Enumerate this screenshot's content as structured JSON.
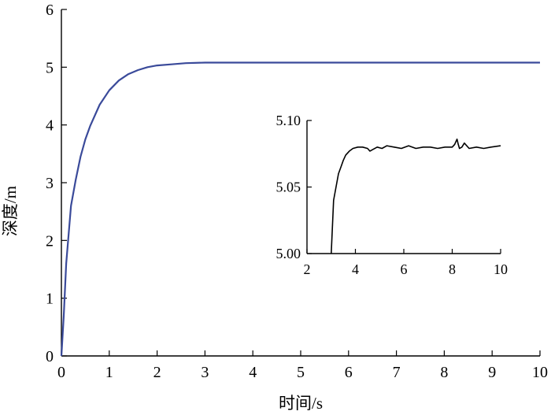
{
  "chart_data": [
    {
      "type": "line",
      "xlabel": "时间/s",
      "ylabel": "深度/m",
      "xlim": [
        0,
        10
      ],
      "ylim": [
        0,
        6
      ],
      "xticks": [
        "0",
        "1",
        "2",
        "3",
        "4",
        "5",
        "6",
        "7",
        "8",
        "9",
        "10"
      ],
      "yticks": [
        "0",
        "1",
        "2",
        "3",
        "4",
        "5",
        "6"
      ],
      "grid": false,
      "line_color": "#3a4a9a",
      "series": [
        {
          "x": [
            0,
            0.05,
            0.1,
            0.2,
            0.3,
            0.4,
            0.5,
            0.6,
            0.8,
            1.0,
            1.2,
            1.4,
            1.6,
            1.8,
            2.0,
            2.3,
            2.6,
            3.0,
            3.5,
            4,
            5,
            6,
            7,
            8,
            9,
            10
          ],
          "y": [
            0,
            0.7,
            1.6,
            2.6,
            3.05,
            3.45,
            3.75,
            3.98,
            4.35,
            4.6,
            4.77,
            4.88,
            4.95,
            5.0,
            5.03,
            5.05,
            5.07,
            5.08,
            5.08,
            5.08,
            5.08,
            5.08,
            5.08,
            5.08,
            5.08,
            5.08
          ]
        }
      ]
    },
    {
      "type": "line",
      "role": "inset",
      "xlim": [
        2,
        10
      ],
      "ylim": [
        5.0,
        5.1
      ],
      "xticks": [
        "2",
        "4",
        "6",
        "8",
        "10"
      ],
      "yticks": [
        "5.00",
        "5.05",
        "5.10"
      ],
      "grid": false,
      "line_color": "#000000",
      "series": [
        {
          "x": [
            3.0,
            3.05,
            3.1,
            3.2,
            3.3,
            3.4,
            3.5,
            3.6,
            3.75,
            3.9,
            4.1,
            4.3,
            4.5,
            4.6,
            4.7,
            4.9,
            5.1,
            5.3,
            5.6,
            5.9,
            6.2,
            6.5,
            6.8,
            7.1,
            7.4,
            7.7,
            8.0,
            8.1,
            8.2,
            8.25,
            8.3,
            8.4,
            8.5,
            8.7,
            9.0,
            9.3,
            9.6,
            10.0
          ],
          "y": [
            5.0,
            5.02,
            5.04,
            5.05,
            5.06,
            5.065,
            5.07,
            5.074,
            5.077,
            5.079,
            5.08,
            5.08,
            5.079,
            5.077,
            5.078,
            5.08,
            5.079,
            5.081,
            5.08,
            5.079,
            5.081,
            5.079,
            5.08,
            5.08,
            5.079,
            5.08,
            5.08,
            5.082,
            5.086,
            5.082,
            5.079,
            5.08,
            5.083,
            5.079,
            5.08,
            5.079,
            5.08,
            5.081
          ]
        }
      ]
    }
  ]
}
